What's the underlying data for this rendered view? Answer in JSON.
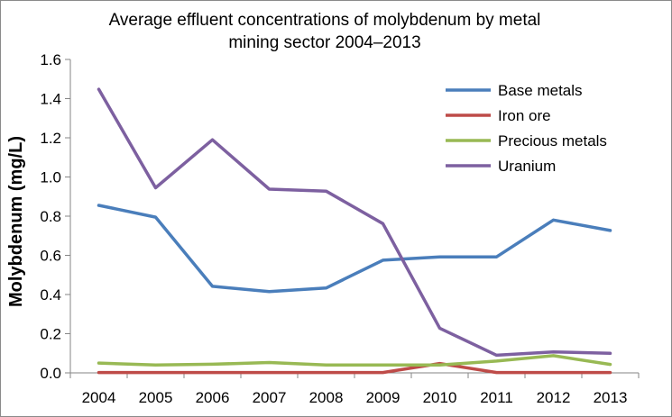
{
  "chart_data": {
    "type": "line",
    "title_line1": "Average effluent concentrations of molybdenum  by metal",
    "title_line2": "mining sector 2004–2013",
    "xlabel": "",
    "ylabel": "Molybdenum (mg/L)",
    "categories": [
      "2004",
      "2005",
      "2006",
      "2007",
      "2008",
      "2009",
      "2010",
      "2011",
      "2012",
      "2013"
    ],
    "ylim": [
      0,
      1.6
    ],
    "yticks": [
      "0.0",
      "0.2",
      "0.4",
      "0.6",
      "0.8",
      "1.0",
      "1.2",
      "1.4",
      "1.6"
    ],
    "grid": false,
    "legend_position": "top-right",
    "series": [
      {
        "name": "Base metals",
        "color": "#4a7ebb",
        "values": [
          0.855,
          0.795,
          0.442,
          0.415,
          0.433,
          0.575,
          0.592,
          0.592,
          0.78,
          0.727
        ]
      },
      {
        "name": "Iron ore",
        "color": "#be4b48",
        "values": [
          0.002,
          0.002,
          0.002,
          0.002,
          0.002,
          0.002,
          0.048,
          0.002,
          0.002,
          0.002
        ]
      },
      {
        "name": "Precious metals",
        "color": "#98b954",
        "values": [
          0.05,
          0.04,
          0.044,
          0.053,
          0.04,
          0.04,
          0.04,
          0.06,
          0.088,
          0.043
        ]
      },
      {
        "name": "Uranium",
        "color": "#7d60a0",
        "values": [
          1.448,
          0.945,
          1.19,
          0.938,
          0.928,
          0.762,
          0.228,
          0.09,
          0.107,
          0.1
        ]
      }
    ]
  }
}
